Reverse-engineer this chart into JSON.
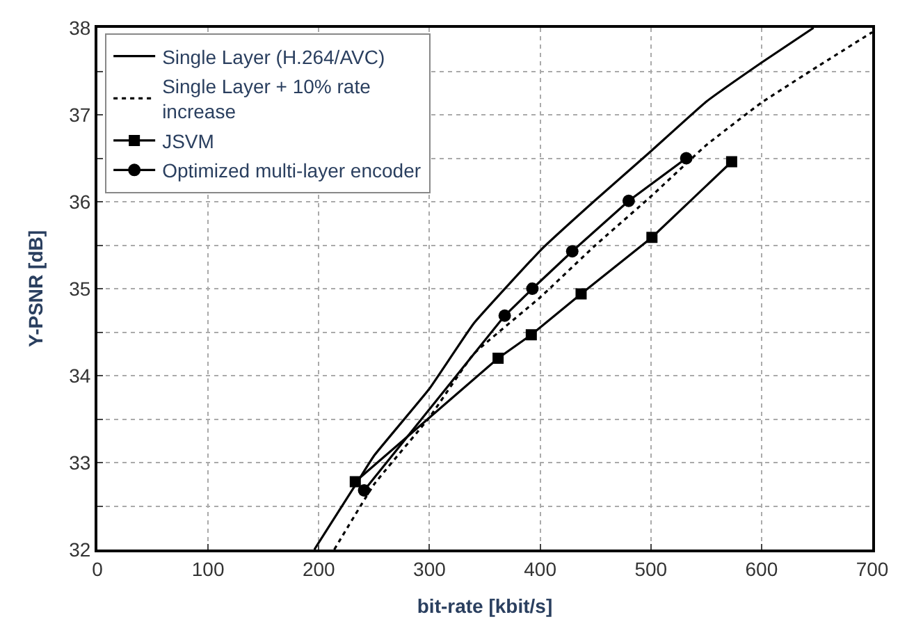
{
  "chart_data": {
    "type": "line",
    "xlabel": "bit-rate [kbit/s]",
    "ylabel": "Y-PSNR [dB]",
    "xlim": [
      0,
      700
    ],
    "xticks": [
      0,
      100,
      200,
      300,
      400,
      500,
      600,
      700
    ],
    "ylim": [
      32,
      38
    ],
    "yticks": [
      32,
      {
        "value": 32.5,
        "label": null
      },
      33,
      {
        "value": 33.5,
        "label": null
      },
      34,
      {
        "value": 34.5,
        "label": null
      },
      35,
      {
        "value": 35.5,
        "label": null
      },
      36,
      {
        "value": 36.5,
        "label": null
      },
      37,
      {
        "value": 37.5,
        "label": null
      },
      38
    ],
    "grid": true,
    "legend": "top left",
    "series": [
      {
        "name": "Single Layer (H.264/AVC)",
        "color": "#000000",
        "line_style": "solid",
        "marker": "none",
        "x": [
          196,
          236,
          250,
          300,
          340,
          401,
          450,
          500,
          550,
          600,
          647
        ],
        "values": [
          32.0,
          32.8,
          33.08,
          33.85,
          34.6,
          35.45,
          36.02,
          36.58,
          37.15,
          37.6,
          38.0
        ]
      },
      {
        "name": "Single Layer + 10% rate\nincrease",
        "color": "#000000",
        "line_style": "dotted",
        "marker": "none",
        "x": [
          214,
          250,
          300,
          340,
          400,
          450,
          500,
          550,
          600,
          650,
          700
        ],
        "values": [
          32.0,
          32.75,
          33.52,
          34.25,
          34.9,
          35.5,
          36.06,
          36.65,
          37.14,
          37.55,
          37.95
        ]
      },
      {
        "name": "JSVM",
        "color": "#000000",
        "line_style": "solid",
        "marker": "square",
        "x": [
          233,
          362,
          392,
          437,
          501,
          573
        ],
        "values": [
          32.78,
          34.2,
          34.47,
          34.94,
          35.59,
          36.46
        ]
      },
      {
        "name": "Optimized multi-layer encoder",
        "color": "#000000",
        "line_style": "solid",
        "marker": "circle",
        "x": [
          241,
          368,
          393,
          429,
          480,
          532
        ],
        "values": [
          32.68,
          34.69,
          35.0,
          35.43,
          36.01,
          36.5
        ]
      }
    ]
  }
}
